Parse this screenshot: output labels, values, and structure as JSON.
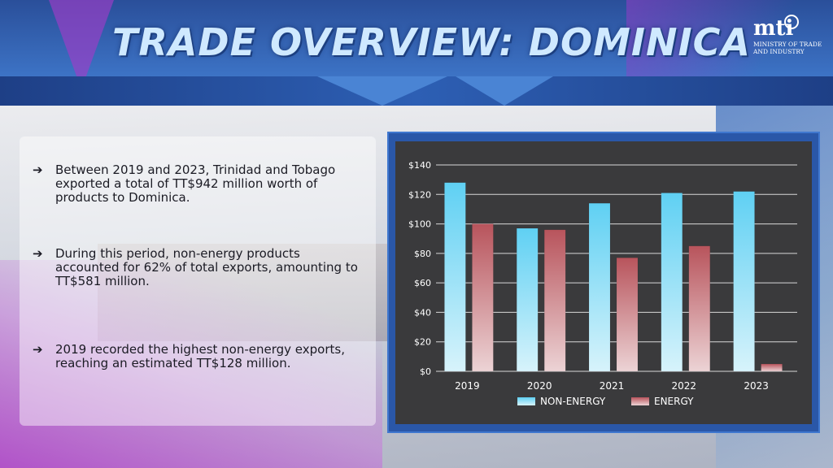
{
  "header": {
    "title": "TRADE OVERVIEW: DOMINICA",
    "logo_mark": "mti",
    "logo_line1": "MINISTRY OF TRADE",
    "logo_line2": "AND INDUSTRY"
  },
  "bullets": [
    {
      "icon": "arrow-bullet-icon",
      "text": "Between 2019 and 2023, Trinidad and Tobago exported a total of TT$942 million worth of products to Dominica."
    },
    {
      "icon": "arrow-bullet-icon",
      "text": "During this period, non-energy products accounted for 62% of total exports, amounting to TT$581 million."
    },
    {
      "icon": "arrow-bullet-icon",
      "text": "2019 recorded the highest non-energy exports, reaching an estimated TT$128 million."
    }
  ],
  "colors": {
    "non_energy": "#5fd0f3",
    "energy": "#b8545c",
    "chart_bg": "#3a3a3c",
    "frame": "#2a57a8"
  },
  "chart_data": {
    "type": "bar",
    "categories": [
      "2019",
      "2020",
      "2021",
      "2022",
      "2023"
    ],
    "series": [
      {
        "name": "NON-ENERGY",
        "values": [
          128,
          97,
          114,
          121,
          122
        ]
      },
      {
        "name": "ENERGY",
        "values": [
          100,
          96,
          77,
          85,
          5
        ]
      }
    ],
    "ylim": [
      0,
      140
    ],
    "yticks": [
      0,
      20,
      40,
      60,
      80,
      100,
      120,
      140
    ],
    "ytick_labels": [
      "$0",
      "$20",
      "$40",
      "$60",
      "$80",
      "$100",
      "$120",
      "$140"
    ],
    "grid": true,
    "legend_position": "bottom"
  }
}
